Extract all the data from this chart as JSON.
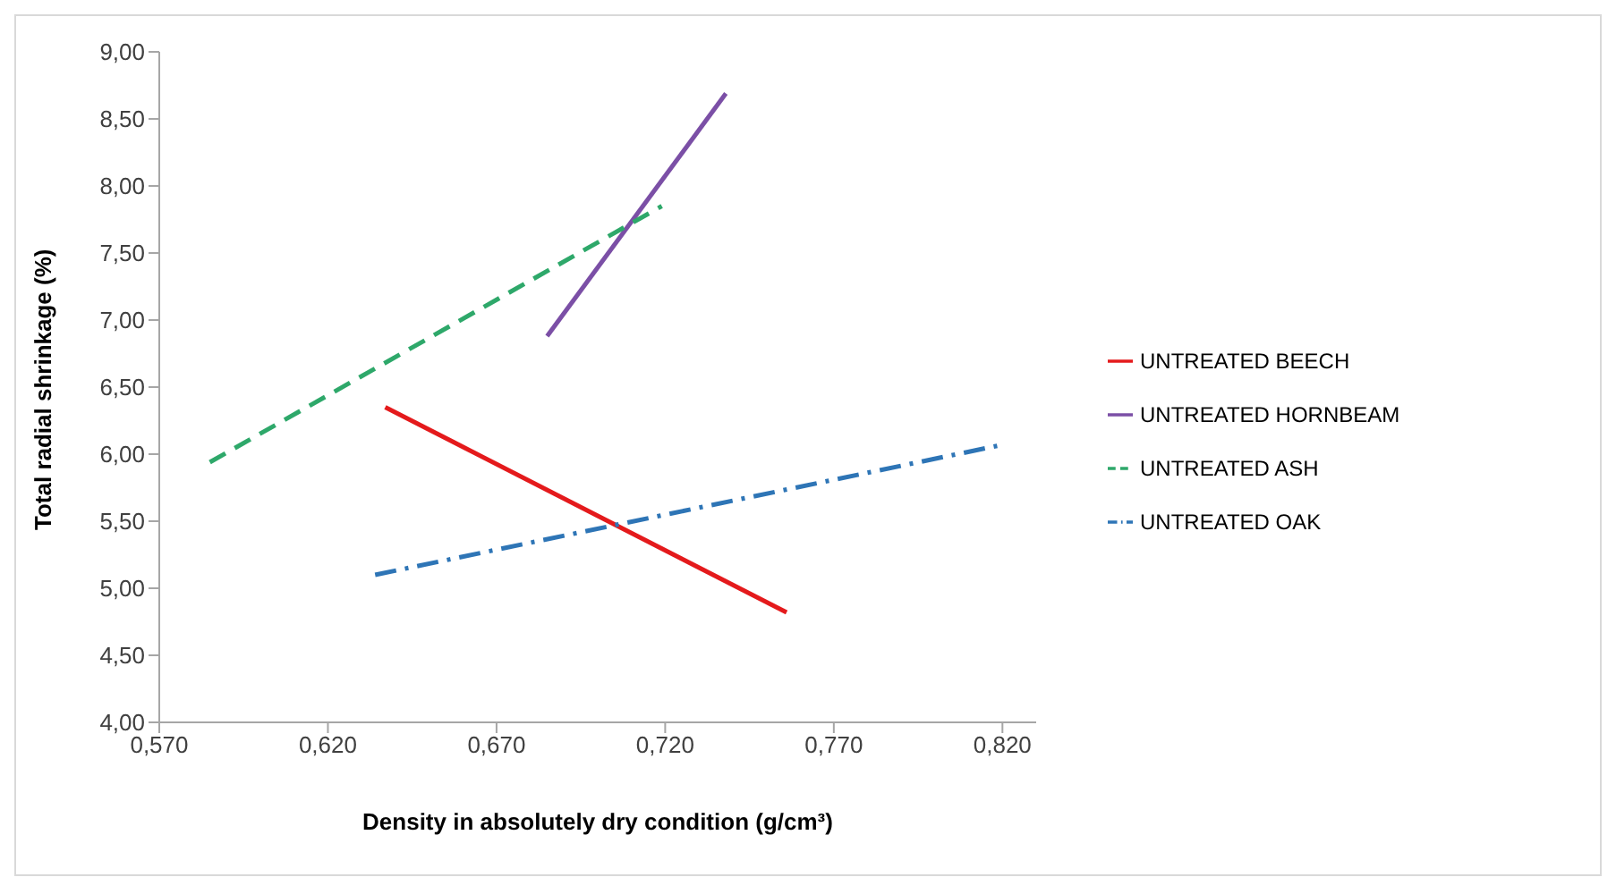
{
  "chart_data": {
    "type": "line",
    "xlabel": "Density in absolutely dry condition (g/cm³)",
    "ylabel": "Total radial shrinkage (%)",
    "xlim": [
      0.57,
      0.83
    ],
    "xticks": [
      {
        "value": 0.57,
        "label": "0,570"
      },
      {
        "value": 0.62,
        "label": "0,620"
      },
      {
        "value": 0.67,
        "label": "0,670"
      },
      {
        "value": 0.72,
        "label": "0,720"
      },
      {
        "value": 0.77,
        "label": "0,770"
      },
      {
        "value": 0.82,
        "label": "0,820"
      }
    ],
    "ylim": [
      4,
      9
    ],
    "yticks": [
      {
        "value": 4,
        "label": "4,00"
      },
      {
        "value": 4.5,
        "label": "4,50"
      },
      {
        "value": 5,
        "label": "5,00"
      },
      {
        "value": 5.5,
        "label": "5,50"
      },
      {
        "value": 6,
        "label": "6,00"
      },
      {
        "value": 6.5,
        "label": "6,50"
      },
      {
        "value": 7,
        "label": "7,00"
      },
      {
        "value": 7.5,
        "label": "7,50"
      },
      {
        "value": 8,
        "label": "8,00"
      },
      {
        "value": 8.5,
        "label": "8,50"
      },
      {
        "value": 9,
        "label": "9,00"
      }
    ],
    "grid": false,
    "legend": "right",
    "marker": "none",
    "series": [
      {
        "name": "UNTREATED BEECH",
        "color": "#e41a1c",
        "line_style": "solid",
        "x": [
          0.637,
          0.756
        ],
        "values": [
          6.35,
          4.82
        ]
      },
      {
        "name": "UNTREATED HORNBEAM",
        "color": "#7b4fa6",
        "line_style": "solid",
        "x": [
          0.685,
          0.738
        ],
        "values": [
          6.88,
          8.69
        ]
      },
      {
        "name": "UNTREATED ASH",
        "color": "#2ea86a",
        "line_style": "dashed",
        "x": [
          0.585,
          0.719
        ],
        "values": [
          5.94,
          7.85
        ]
      },
      {
        "name": "UNTREATED OAK",
        "color": "#2e75b6",
        "line_style": "dashdot",
        "x": [
          0.634,
          0.82
        ],
        "values": [
          5.1,
          6.07
        ]
      }
    ]
  }
}
